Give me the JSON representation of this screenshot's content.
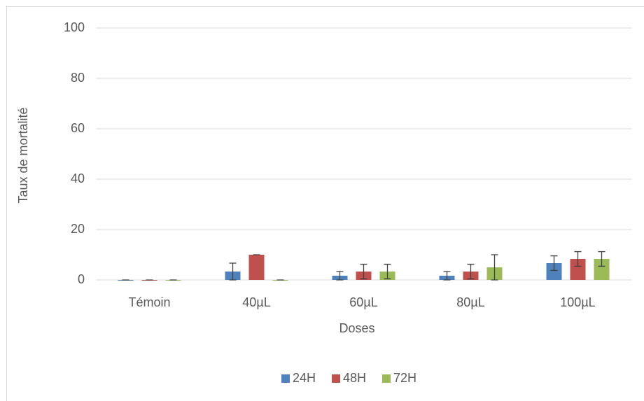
{
  "chart_data": {
    "type": "bar",
    "x_label": "Doses",
    "y_label": "Taux de mortalité",
    "categories": [
      "Témoin",
      "40µL",
      "60µL",
      "80µL",
      "100µL"
    ],
    "series": [
      {
        "name": "24H",
        "color": "#4f81bd",
        "values": [
          0,
          3.33,
          1.67,
          1.67,
          6.67
        ],
        "errors": [
          0,
          3.33,
          1.67,
          1.67,
          2.9
        ]
      },
      {
        "name": "48H",
        "color": "#c0504d",
        "values": [
          0,
          10,
          3.33,
          3.33,
          8.33
        ],
        "errors": [
          0,
          0,
          2.9,
          2.9,
          2.9
        ]
      },
      {
        "name": "72H",
        "color": "#9bbb59",
        "values": [
          0,
          0,
          3.33,
          5,
          8.33
        ],
        "errors": [
          0,
          0,
          2.9,
          5,
          2.9
        ]
      }
    ],
    "ylim": [
      0,
      100
    ],
    "yticks": [
      0,
      20,
      40,
      60,
      80,
      100
    ],
    "grid": true,
    "legend": "bottom"
  }
}
